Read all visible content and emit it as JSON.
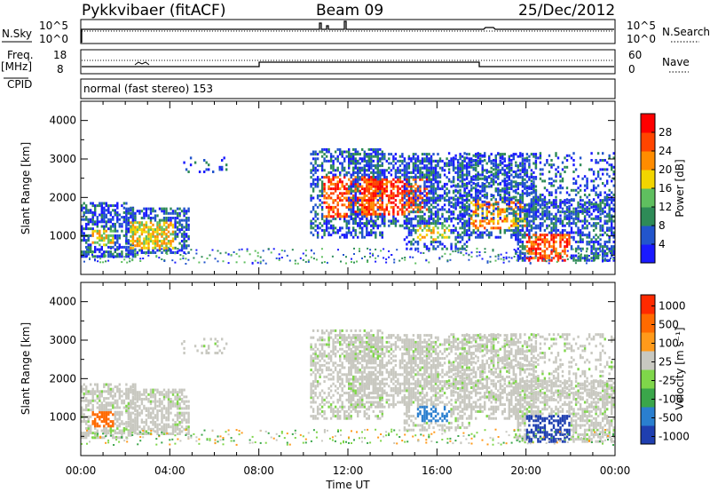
{
  "header": {
    "station": "Pykkvibaer (fitACF)",
    "beam": "Beam 09",
    "date": "25/Dec/2012"
  },
  "top_panels": {
    "nsky_label": "N.Sky",
    "nsky_ticks": [
      "10^5",
      "10^0"
    ],
    "nsearch_label": "N.Search",
    "nsearch_ticks": [
      "10^5",
      "10^0"
    ],
    "freq_label_1": "Freq.",
    "freq_label_2": "[MHz]",
    "freq_ticks": [
      "18",
      "8"
    ],
    "nave_label": "Nave",
    "nave_ticks": [
      "60",
      "0"
    ],
    "cpid_label": "CPID",
    "cpid_value": "normal (fast stereo) 153"
  },
  "chart_data": [
    {
      "type": "heatmap",
      "name": "power",
      "ylabel": "Slant Range [km]",
      "yticks": [
        "1000",
        "2000",
        "3000",
        "4000"
      ],
      "ylim": [
        0,
        4500
      ],
      "xlim": [
        0,
        24
      ],
      "colorbar_label": "Power [dB]",
      "colorbar_ticks": [
        "4",
        "8",
        "12",
        "16",
        "20",
        "24",
        "28"
      ],
      "colorbar_colors": [
        "#1a1aff",
        "#2255cc",
        "#2e8b57",
        "#5fbf5f",
        "#f2d500",
        "#ff8c00",
        "#ff4500",
        "#ff0000"
      ]
    },
    {
      "type": "heatmap",
      "name": "velocity",
      "ylabel": "Slant Range [km]",
      "yticks": [
        "1000",
        "2000",
        "3000",
        "4000"
      ],
      "ylim": [
        0,
        4500
      ],
      "xlim": [
        0,
        24
      ],
      "xlabel": "Time UT",
      "xticks": [
        "00:00",
        "04:00",
        "08:00",
        "12:00",
        "16:00",
        "20:00",
        "00:00"
      ],
      "colorbar_label": "Velocity [m s⁻¹]",
      "colorbar_ticks": [
        "1000",
        "500",
        "100",
        "25",
        "-25",
        "-100",
        "-500",
        "-1000"
      ],
      "colorbar_colors": [
        "#1f3fb0",
        "#2a7fcf",
        "#3aa64a",
        "#7fd64a",
        "#c8c8c0",
        "#ff9a1a",
        "#ff6a00",
        "#ff2a00"
      ]
    }
  ]
}
